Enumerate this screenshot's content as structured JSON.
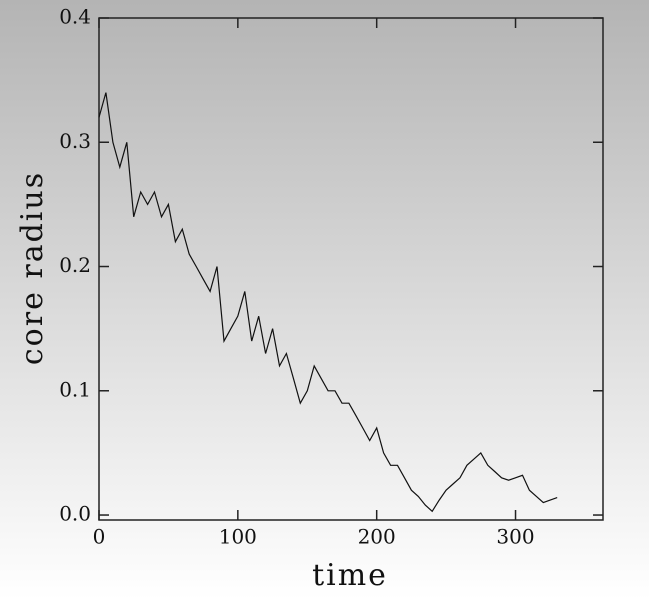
{
  "chart_data": {
    "type": "line",
    "xlabel": "time",
    "ylabel": "core radius",
    "x": [
      0,
      5,
      10,
      15,
      20,
      25,
      30,
      35,
      40,
      45,
      50,
      55,
      60,
      65,
      70,
      75,
      80,
      85,
      90,
      95,
      100,
      105,
      110,
      115,
      120,
      125,
      130,
      135,
      140,
      145,
      150,
      155,
      160,
      165,
      170,
      175,
      180,
      185,
      190,
      195,
      200,
      205,
      210,
      215,
      220,
      225,
      230,
      235,
      240,
      245,
      250,
      255,
      260,
      265,
      270,
      275,
      280,
      285,
      290,
      295,
      300,
      305,
      310,
      315,
      320,
      325,
      330
    ],
    "series": [
      {
        "color": "#111111",
        "values": [
          0.32,
          0.34,
          0.3,
          0.28,
          0.3,
          0.24,
          0.26,
          0.25,
          0.26,
          0.24,
          0.25,
          0.22,
          0.23,
          0.21,
          0.2,
          0.19,
          0.18,
          0.2,
          0.14,
          0.15,
          0.16,
          0.18,
          0.14,
          0.16,
          0.13,
          0.15,
          0.12,
          0.13,
          0.11,
          0.09,
          0.1,
          0.12,
          0.11,
          0.1,
          0.1,
          0.09,
          0.09,
          0.08,
          0.07,
          0.06,
          0.07,
          0.05,
          0.04,
          0.04,
          0.03,
          0.02,
          0.015,
          0.008,
          0.003,
          0.012,
          0.02,
          0.025,
          0.03,
          0.04,
          0.045,
          0.05,
          0.04,
          0.035,
          0.03,
          0.028,
          0.03,
          0.032,
          0.02,
          0.015,
          0.01,
          0.012,
          0.014
        ]
      }
    ],
    "xlim": [
      0,
      363
    ],
    "ylim": [
      -0.004,
      0.4
    ],
    "xticks": [
      0,
      100,
      200,
      300
    ],
    "yticks": [
      {
        "value": 0,
        "label": "0.0"
      },
      0.1,
      0.2,
      0.3,
      0.4
    ]
  }
}
